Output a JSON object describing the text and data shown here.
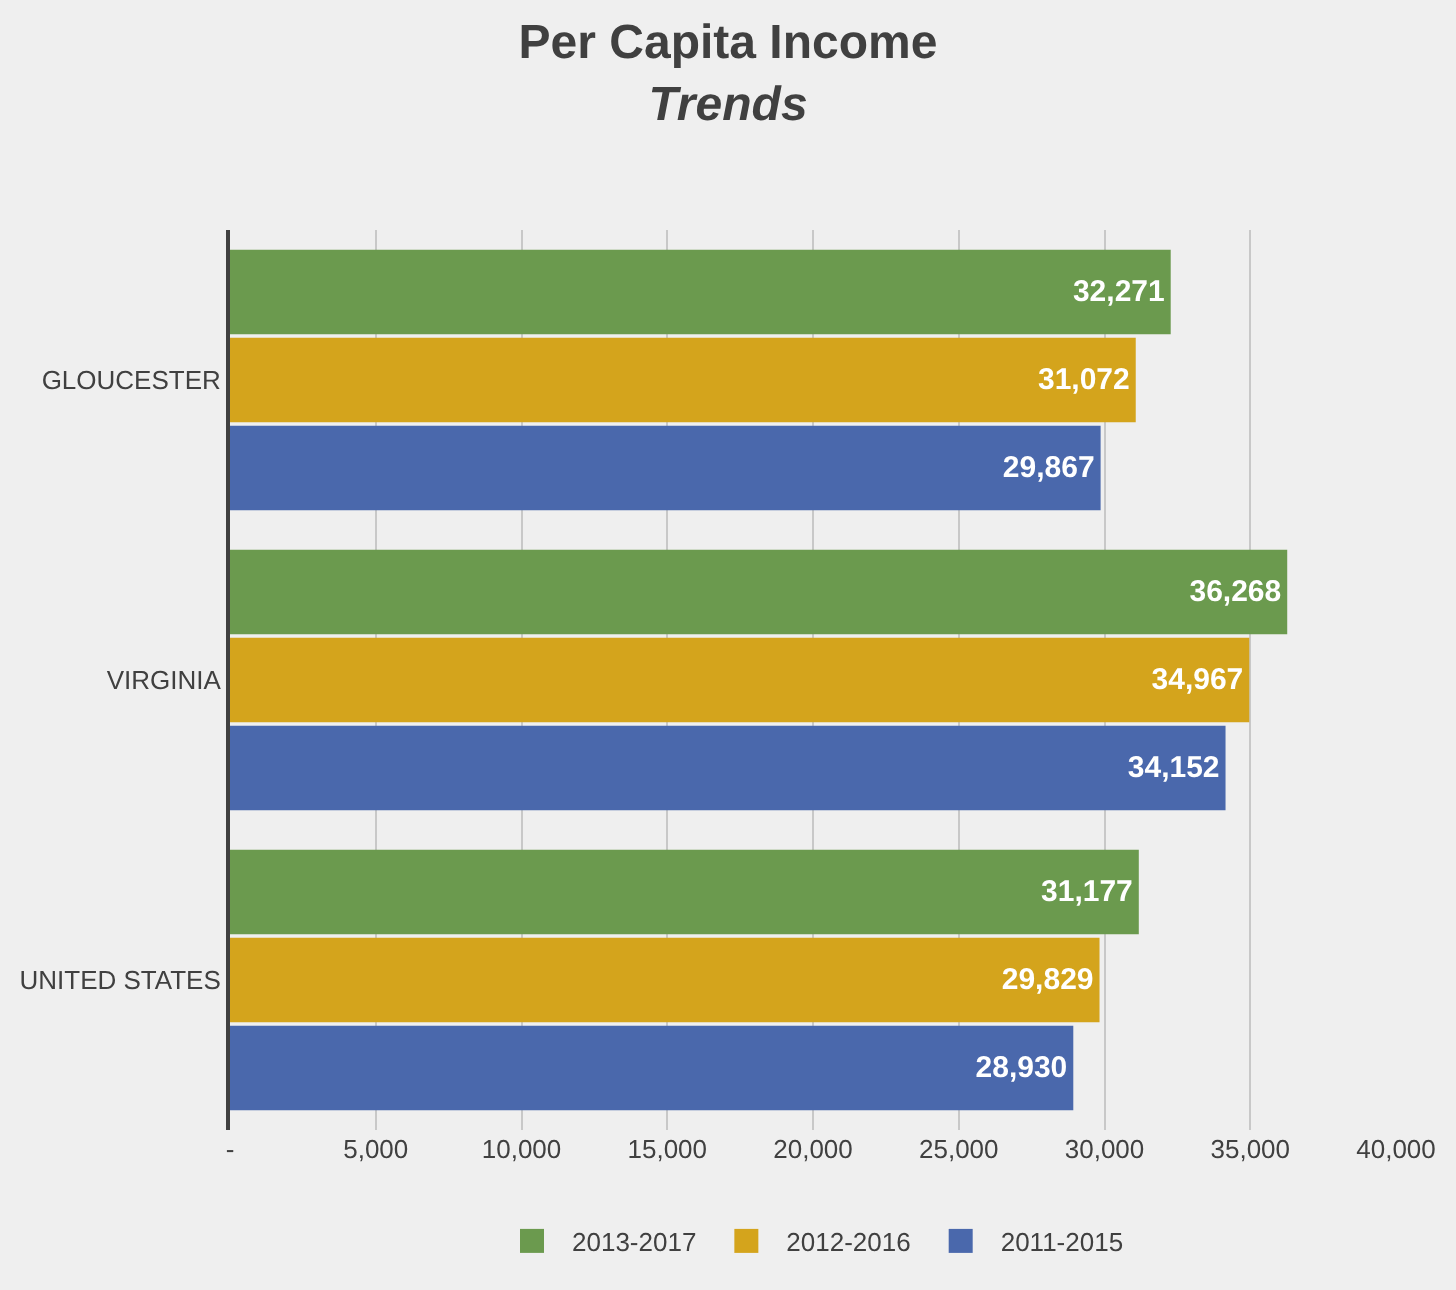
{
  "chart_data": {
    "type": "bar",
    "orientation": "horizontal",
    "title": "Per Capita Income",
    "subtitle": "Trends",
    "categories": [
      "GLOUCESTER",
      "VIRGINIA",
      "UNITED STATES"
    ],
    "series": [
      {
        "name": "2013-2017",
        "color": "#6b9a4e",
        "values": [
          32271,
          36268,
          31177
        ],
        "value_labels": [
          "32,271",
          "36,268",
          "31,177"
        ]
      },
      {
        "name": "2012-2016",
        "color": "#d4a41c",
        "values": [
          31072,
          34967,
          29829
        ],
        "value_labels": [
          "31,072",
          "34,967",
          "29,829"
        ]
      },
      {
        "name": "2011-2015",
        "color": "#4a68ac",
        "values": [
          29867,
          34152,
          28930
        ],
        "value_labels": [
          "29,867",
          "34,152",
          "28,930"
        ]
      }
    ],
    "xlim": [
      0,
      40000
    ],
    "xticks": [
      {
        "value": 0,
        "label": "-"
      },
      {
        "value": 5000,
        "label": "5,000"
      },
      {
        "value": 10000,
        "label": "10,000"
      },
      {
        "value": 15000,
        "label": "15,000"
      },
      {
        "value": 20000,
        "label": "20,000"
      },
      {
        "value": 25000,
        "label": "25,000"
      },
      {
        "value": 30000,
        "label": "30,000"
      },
      {
        "value": 35000,
        "label": "35,000"
      },
      {
        "value": 40000,
        "label": "40,000"
      }
    ],
    "grid": "x",
    "legend": "bottom"
  }
}
